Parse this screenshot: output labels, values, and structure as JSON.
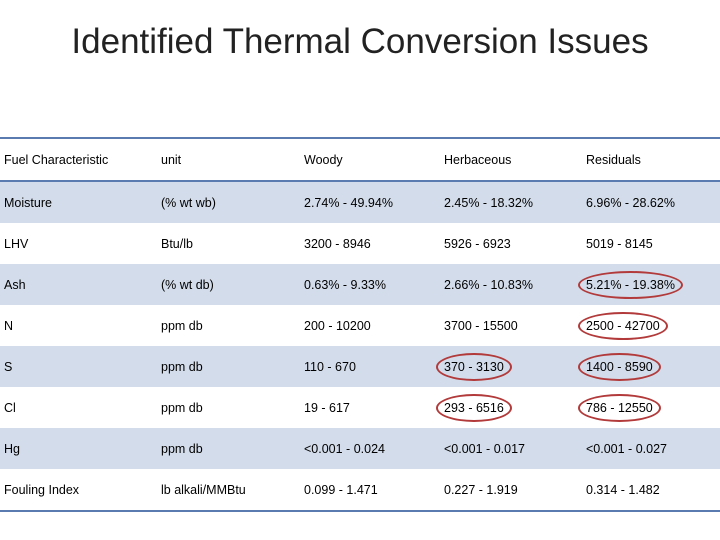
{
  "title": "Identified Thermal Conversion Issues",
  "table": {
    "headers": [
      "Fuel Characteristic",
      "unit",
      "Woody",
      "Herbaceous",
      "Residuals"
    ],
    "rows": [
      {
        "cells": [
          "Moisture",
          "(% wt wb)",
          "2.74% - 49.94%",
          "2.45% - 18.32%",
          "6.96% - 28.62%"
        ],
        "circled": []
      },
      {
        "cells": [
          "LHV",
          "Btu/lb",
          "3200 - 8946",
          "5926 - 6923",
          "5019 - 8145"
        ],
        "circled": []
      },
      {
        "cells": [
          "Ash",
          "(% wt db)",
          "0.63% - 9.33%",
          "2.66% - 10.83%",
          "5.21% - 19.38%"
        ],
        "circled": [
          4
        ]
      },
      {
        "cells": [
          "N",
          "ppm db",
          "200 - 10200",
          "3700 - 15500",
          "2500 - 42700"
        ],
        "circled": [
          4
        ]
      },
      {
        "cells": [
          "S",
          "ppm db",
          "110 - 670",
          "370 - 3130",
          "1400 - 8590"
        ],
        "circled": [
          3,
          4
        ]
      },
      {
        "cells": [
          "Cl",
          "ppm db",
          "19 - 617",
          "293 - 6516",
          "786 - 12550"
        ],
        "circled": [
          3,
          4
        ]
      },
      {
        "cells": [
          "Hg",
          "ppm db",
          "<0.001 - 0.024",
          "<0.001 - 0.017",
          "<0.001 - 0.027"
        ],
        "circled": []
      },
      {
        "cells": [
          "Fouling Index",
          "lb alkali/MMBtu",
          "0.099 - 1.471",
          "0.227 - 1.919",
          "0.314 - 1.482"
        ],
        "circled": []
      }
    ]
  },
  "colors": {
    "band": "#d3dcea",
    "rule": "#5a7bb0",
    "highlight_circle": "#b23a3a"
  }
}
